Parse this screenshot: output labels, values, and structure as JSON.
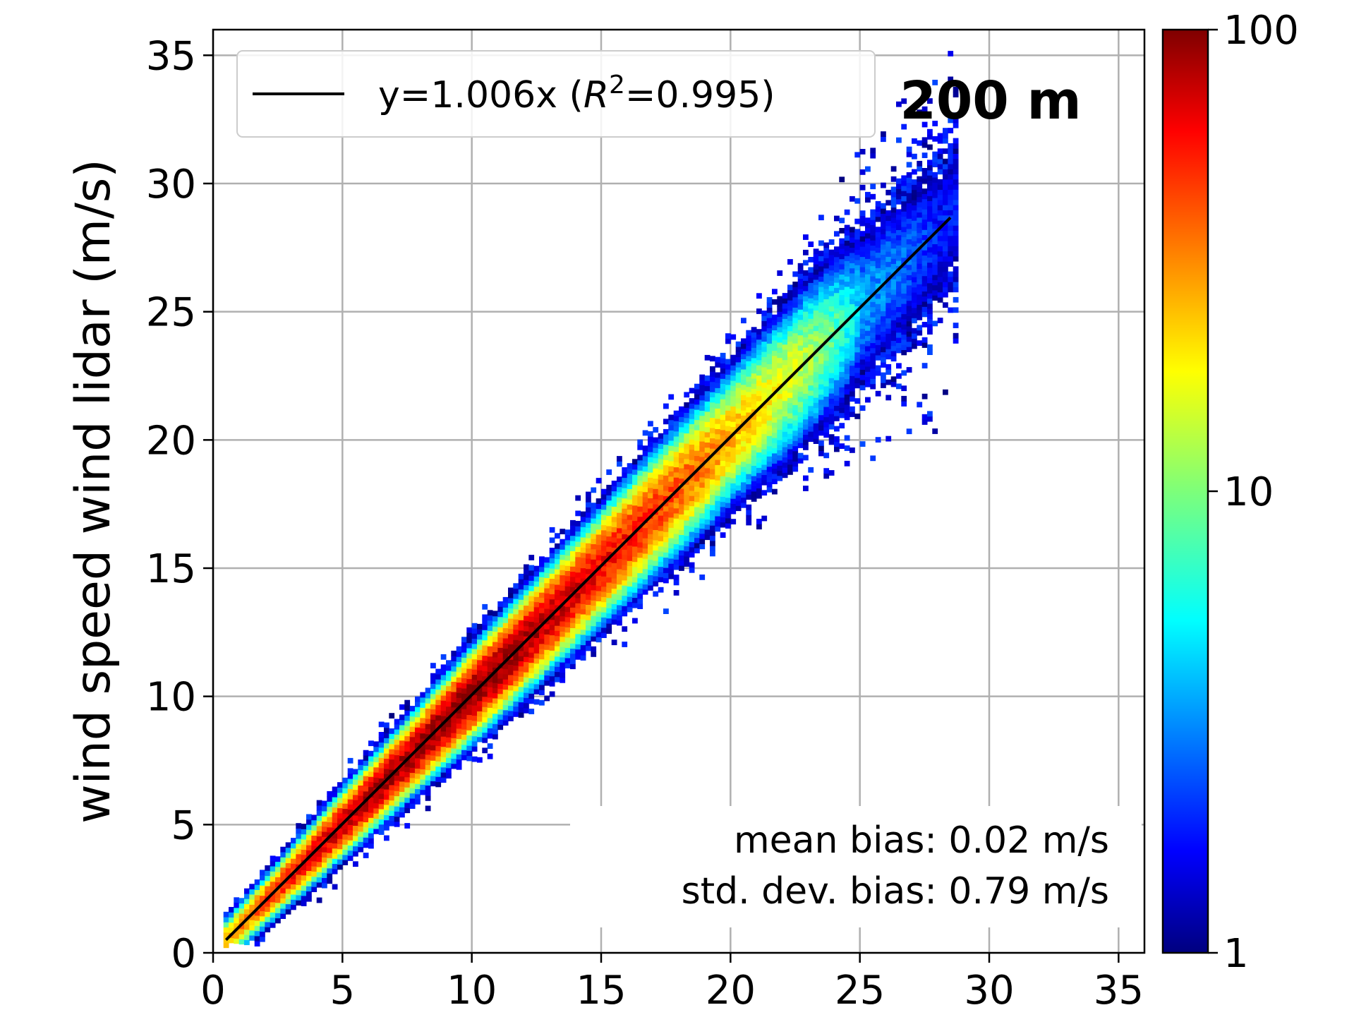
{
  "chart_data": {
    "type": "heatmap",
    "subtype": "2d-histogram-scatter-density",
    "annotation": "200 m",
    "xlabel": "",
    "ylabel": "wind speed wind lidar (m/s)",
    "xlim": [
      0,
      36
    ],
    "ylim": [
      0,
      36
    ],
    "xticks": [
      0,
      5,
      10,
      15,
      20,
      25,
      30,
      35
    ],
    "yticks": [
      0,
      5,
      10,
      15,
      20,
      25,
      30,
      35
    ],
    "grid": true,
    "legend": {
      "placement": "top-left",
      "entries": [
        {
          "label": "y=1.006x (R2=0.995)",
          "prefix": "y=1.006x (",
          "italic": "R",
          "sup": "2",
          "suffix": "=0.995)",
          "color": "#000000"
        }
      ]
    },
    "fit_line": {
      "slope": 1.006,
      "r2": 0.995,
      "x_range": [
        0.5,
        28.5
      ]
    },
    "stats": {
      "mean_bias": "mean bias: 0.02 m/s",
      "std_bias": "std. dev. bias: 0.79 m/s"
    },
    "colorbar": {
      "scale": "log",
      "range": [
        1,
        100
      ],
      "ticks": [
        "1",
        "10",
        "100"
      ],
      "colormap": "jet"
    },
    "density_spread": {
      "x": [
        0.5,
        5,
        10,
        15,
        20,
        25,
        28
      ],
      "sigma": [
        0.4,
        0.55,
        0.75,
        0.95,
        1.2,
        1.7,
        2.0
      ],
      "peak_count": [
        25,
        80,
        100,
        60,
        25,
        4,
        2
      ]
    }
  },
  "colors": {
    "grid": "#b0b0b0",
    "fit_line": "#000000",
    "background": "#ffffff"
  }
}
